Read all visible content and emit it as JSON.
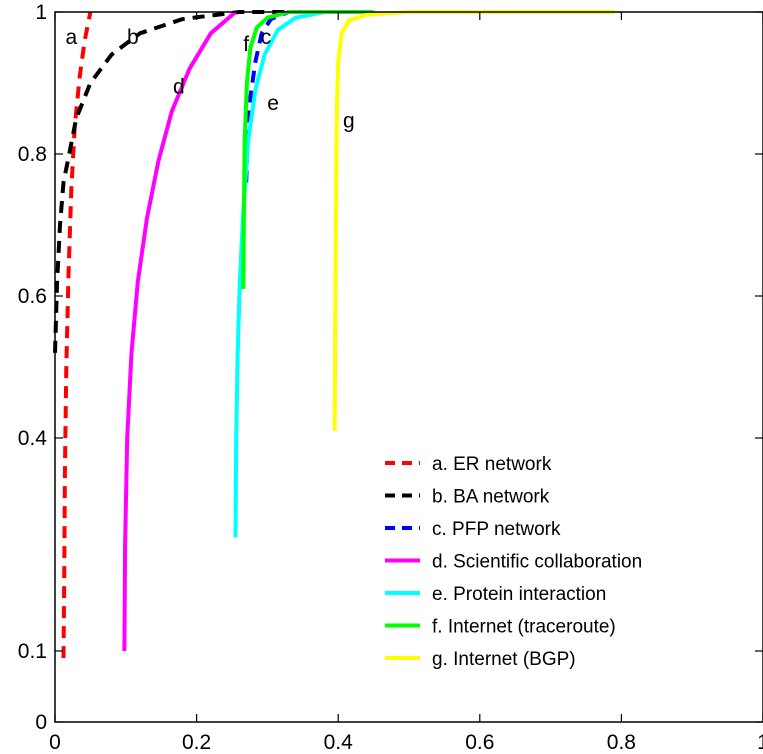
{
  "chart_data": {
    "type": "line",
    "title": "",
    "xlabel": "",
    "ylabel": "",
    "xlim": [
      0,
      1
    ],
    "ylim": [
      0,
      1
    ],
    "x_ticks": [
      0,
      0.2,
      0.4,
      0.6,
      0.8,
      1
    ],
    "x_tick_labels": [
      "0",
      "0.2",
      "0.4",
      "0.6",
      "0.8",
      "1"
    ],
    "y_ticks": [
      0,
      0.1,
      0.4,
      0.6,
      0.8,
      1
    ],
    "y_tick_labels": [
      "0",
      "0.1",
      "0.4",
      "0.6",
      "0.8",
      "1"
    ],
    "grid": false,
    "legend_position": "bottom-right",
    "series": [
      {
        "name": "a. ER network",
        "curve_label": "a",
        "color": "#ff0000",
        "dashed": true,
        "points": [
          [
            0.012,
            0.09
          ],
          [
            0.013,
            0.2
          ],
          [
            0.014,
            0.35
          ],
          [
            0.016,
            0.5
          ],
          [
            0.019,
            0.63
          ],
          [
            0.023,
            0.75
          ],
          [
            0.028,
            0.84
          ],
          [
            0.035,
            0.91
          ],
          [
            0.042,
            0.96
          ],
          [
            0.05,
            1.0
          ]
        ]
      },
      {
        "name": "b. BA network",
        "curve_label": "b",
        "color": "#000000",
        "dashed": true,
        "points": [
          [
            0.0,
            0.52
          ],
          [
            0.003,
            0.62
          ],
          [
            0.007,
            0.7
          ],
          [
            0.012,
            0.76
          ],
          [
            0.02,
            0.8
          ],
          [
            0.03,
            0.85
          ],
          [
            0.05,
            0.9
          ],
          [
            0.08,
            0.94
          ],
          [
            0.12,
            0.97
          ],
          [
            0.18,
            0.99
          ],
          [
            0.26,
            1.0
          ],
          [
            0.34,
            1.0
          ]
        ]
      },
      {
        "name": "c. PFP network",
        "curve_label": "c",
        "color": "#0000ff",
        "dashed": true,
        "points": [
          [
            0.27,
            0.76
          ],
          [
            0.272,
            0.82
          ],
          [
            0.276,
            0.88
          ],
          [
            0.283,
            0.93
          ],
          [
            0.292,
            0.97
          ],
          [
            0.305,
            0.99
          ],
          [
            0.33,
            1.0
          ]
        ]
      },
      {
        "name": "d. Scientific collaboration",
        "curve_label": "d",
        "color": "#ff00ff",
        "dashed": false,
        "points": [
          [
            0.098,
            0.1
          ],
          [
            0.099,
            0.25
          ],
          [
            0.102,
            0.4
          ],
          [
            0.108,
            0.52
          ],
          [
            0.117,
            0.62
          ],
          [
            0.13,
            0.71
          ],
          [
            0.146,
            0.79
          ],
          [
            0.165,
            0.86
          ],
          [
            0.19,
            0.92
          ],
          [
            0.22,
            0.97
          ],
          [
            0.255,
            1.0
          ]
        ]
      },
      {
        "name": "e. Protein interaction",
        "curve_label": "e",
        "color": "#00ffff",
        "dashed": false,
        "points": [
          [
            0.255,
            0.26
          ],
          [
            0.256,
            0.4
          ],
          [
            0.258,
            0.52
          ],
          [
            0.261,
            0.62
          ],
          [
            0.266,
            0.72
          ],
          [
            0.273,
            0.82
          ],
          [
            0.283,
            0.89
          ],
          [
            0.296,
            0.94
          ],
          [
            0.315,
            0.975
          ],
          [
            0.34,
            0.992
          ],
          [
            0.38,
            1.0
          ],
          [
            0.45,
            1.0
          ]
        ]
      },
      {
        "name": "f. Internet (traceroute)",
        "curve_label": "f",
        "color": "#00ff00",
        "dashed": false,
        "points": [
          [
            0.266,
            0.61
          ],
          [
            0.267,
            0.73
          ],
          [
            0.268,
            0.82
          ],
          [
            0.271,
            0.9
          ],
          [
            0.276,
            0.95
          ],
          [
            0.285,
            0.978
          ],
          [
            0.3,
            0.992
          ],
          [
            0.33,
            1.0
          ],
          [
            0.45,
            1.0
          ]
        ]
      },
      {
        "name": "g. Internet (BGP)",
        "curve_label": "g",
        "color": "#ffff00",
        "dashed": false,
        "points": [
          [
            0.395,
            0.41
          ],
          [
            0.396,
            0.6
          ],
          [
            0.397,
            0.75
          ],
          [
            0.398,
            0.86
          ],
          [
            0.4,
            0.93
          ],
          [
            0.405,
            0.97
          ],
          [
            0.415,
            0.988
          ],
          [
            0.44,
            0.996
          ],
          [
            0.5,
            1.0
          ],
          [
            0.79,
            1.0
          ]
        ]
      }
    ]
  }
}
